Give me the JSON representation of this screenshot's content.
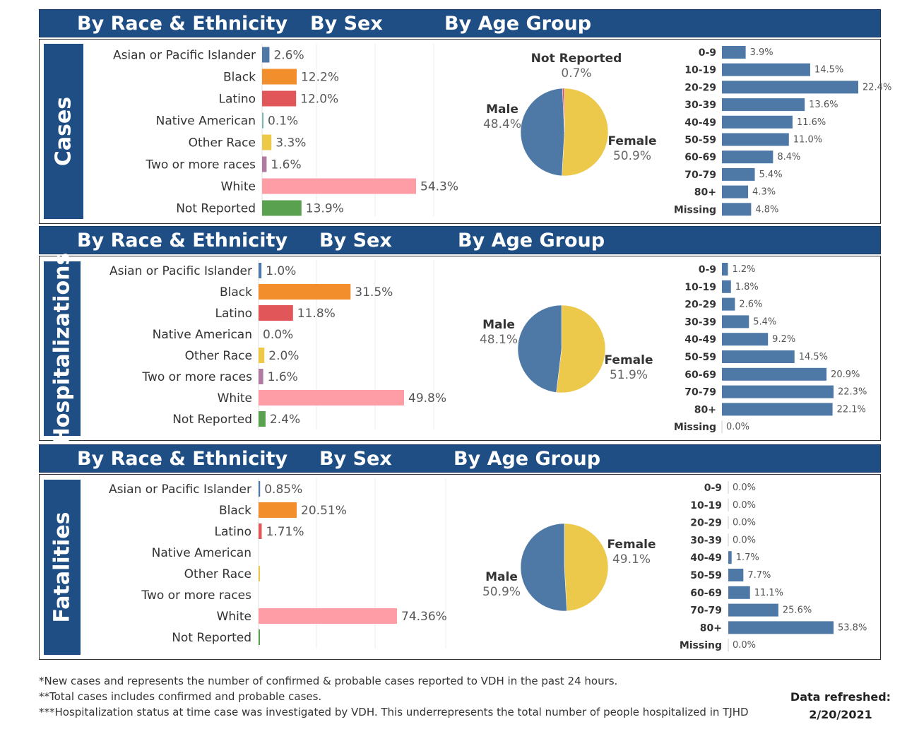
{
  "headers": {
    "race": "By Race & Ethnicity",
    "sex": "By Sex",
    "age": "By Age Group"
  },
  "colors": {
    "header_bg": "#1f4e85",
    "male": "#4e79a7",
    "female": "#ecc94b",
    "not_reported_sex": "#e15759",
    "age_bar": "#4e79a7",
    "race": {
      "Asian or Pacific Islander": "#4e79a7",
      "Black": "#f28e2b",
      "Latino": "#e15759",
      "Native American": "#76b7b2",
      "Other Race": "#edc948",
      "Two or more races": "#b07aa1",
      "White": "#ff9da7",
      "Not Reported": "#59a14f"
    }
  },
  "sections": [
    {
      "title": "Cases"
    },
    {
      "title": "Hospitalizations"
    },
    {
      "title": "Fatalities"
    }
  ],
  "footnotes": [
    "*New cases and represents the number of confirmed & probable cases reported to VDH in the past 24 hours.",
    "**Total cases includes confirmed and probable cases.",
    "***Hospitalization status at time case was investigated by VDH. This underrepresents the total number of people hospitalized in TJHD"
  ],
  "refresh": {
    "label": "Data refreshed:",
    "date": "2/20/2021"
  },
  "chart_data": [
    {
      "type": "bar",
      "section": "Cases",
      "title": "By Race & Ethnicity",
      "categories": [
        "Asian or Pacific Islander",
        "Black",
        "Latino",
        "Native American",
        "Other Race",
        "Two or more races",
        "White",
        "Not Reported"
      ],
      "values": [
        2.6,
        12.2,
        12.0,
        0.1,
        3.3,
        1.6,
        54.3,
        13.9
      ],
      "labels": [
        "2.6%",
        "12.2%",
        "12.0%",
        "0.1%",
        "3.3%",
        "1.6%",
        "54.3%",
        "13.9%"
      ],
      "orientation": "horizontal",
      "xlim": [
        0,
        70
      ]
    },
    {
      "type": "pie",
      "section": "Cases",
      "title": "By Sex",
      "categories": [
        "Male",
        "Female",
        "Not Reported"
      ],
      "values": [
        48.4,
        50.9,
        0.7
      ],
      "labels": [
        "48.4%",
        "50.9%",
        "0.7%"
      ]
    },
    {
      "type": "bar",
      "section": "Cases",
      "title": "By Age Group",
      "categories": [
        "0-9",
        "10-19",
        "20-29",
        "30-39",
        "40-49",
        "50-59",
        "60-69",
        "70-79",
        "80+",
        "Missing"
      ],
      "values": [
        3.9,
        14.5,
        22.4,
        13.6,
        11.6,
        11.0,
        8.4,
        5.4,
        4.3,
        4.8
      ],
      "labels": [
        "3.9%",
        "14.5%",
        "22.4%",
        "13.6%",
        "11.6%",
        "11.0%",
        "8.4%",
        "5.4%",
        "4.3%",
        "4.8%"
      ],
      "orientation": "horizontal"
    },
    {
      "type": "bar",
      "section": "Hospitalizations",
      "title": "By Race & Ethnicity",
      "categories": [
        "Asian or Pacific Islander",
        "Black",
        "Latino",
        "Native American",
        "Other Race",
        "Two or more races",
        "White",
        "Not Reported"
      ],
      "values": [
        1.0,
        31.5,
        11.8,
        0.0,
        2.0,
        1.6,
        49.8,
        2.4
      ],
      "labels": [
        "1.0%",
        "31.5%",
        "11.8%",
        "0.0%",
        "2.0%",
        "1.6%",
        "49.8%",
        "2.4%"
      ],
      "orientation": "horizontal",
      "xlim": [
        0,
        70
      ]
    },
    {
      "type": "pie",
      "section": "Hospitalizations",
      "title": "By Sex",
      "categories": [
        "Male",
        "Female"
      ],
      "values": [
        48.1,
        51.9
      ],
      "labels": [
        "48.1%",
        "51.9%"
      ]
    },
    {
      "type": "bar",
      "section": "Hospitalizations",
      "title": "By Age Group",
      "categories": [
        "0-9",
        "10-19",
        "20-29",
        "30-39",
        "40-49",
        "50-59",
        "60-69",
        "70-79",
        "80+",
        "Missing"
      ],
      "values": [
        1.2,
        1.8,
        2.6,
        5.4,
        9.2,
        14.5,
        20.9,
        22.3,
        22.1,
        0.0
      ],
      "labels": [
        "1.2%",
        "1.8%",
        "2.6%",
        "5.4%",
        "9.2%",
        "14.5%",
        "20.9%",
        "22.3%",
        "22.1%",
        "0.0%"
      ],
      "orientation": "horizontal"
    },
    {
      "type": "bar",
      "section": "Fatalities",
      "title": "By Race & Ethnicity",
      "categories": [
        "Asian or Pacific Islander",
        "Black",
        "Latino",
        "Native American",
        "Other Race",
        "Two or more races",
        "White",
        "Not Reported"
      ],
      "values": [
        0.85,
        20.51,
        1.71,
        0,
        0.3,
        0,
        74.36,
        0.6
      ],
      "labels": [
        "0.85%",
        "20.51%",
        "1.71%",
        "",
        "",
        "",
        "74.36%",
        ""
      ],
      "orientation": "horizontal",
      "xlim": [
        0,
        100
      ]
    },
    {
      "type": "pie",
      "section": "Fatalities",
      "title": "By Sex",
      "categories": [
        "Male",
        "Female"
      ],
      "values": [
        50.9,
        49.1
      ],
      "labels": [
        "50.9%",
        "49.1%"
      ]
    },
    {
      "type": "bar",
      "section": "Fatalities",
      "title": "By Age Group",
      "categories": [
        "0-9",
        "10-19",
        "20-29",
        "30-39",
        "40-49",
        "50-59",
        "60-69",
        "70-79",
        "80+",
        "Missing"
      ],
      "values": [
        0.0,
        0.0,
        0.0,
        0.0,
        1.7,
        7.7,
        11.1,
        25.6,
        53.8,
        0.0
      ],
      "labels": [
        "0.0%",
        "0.0%",
        "0.0%",
        "0.0%",
        "1.7%",
        "7.7%",
        "11.1%",
        "25.6%",
        "53.8%",
        "0.0%"
      ],
      "orientation": "horizontal"
    }
  ]
}
